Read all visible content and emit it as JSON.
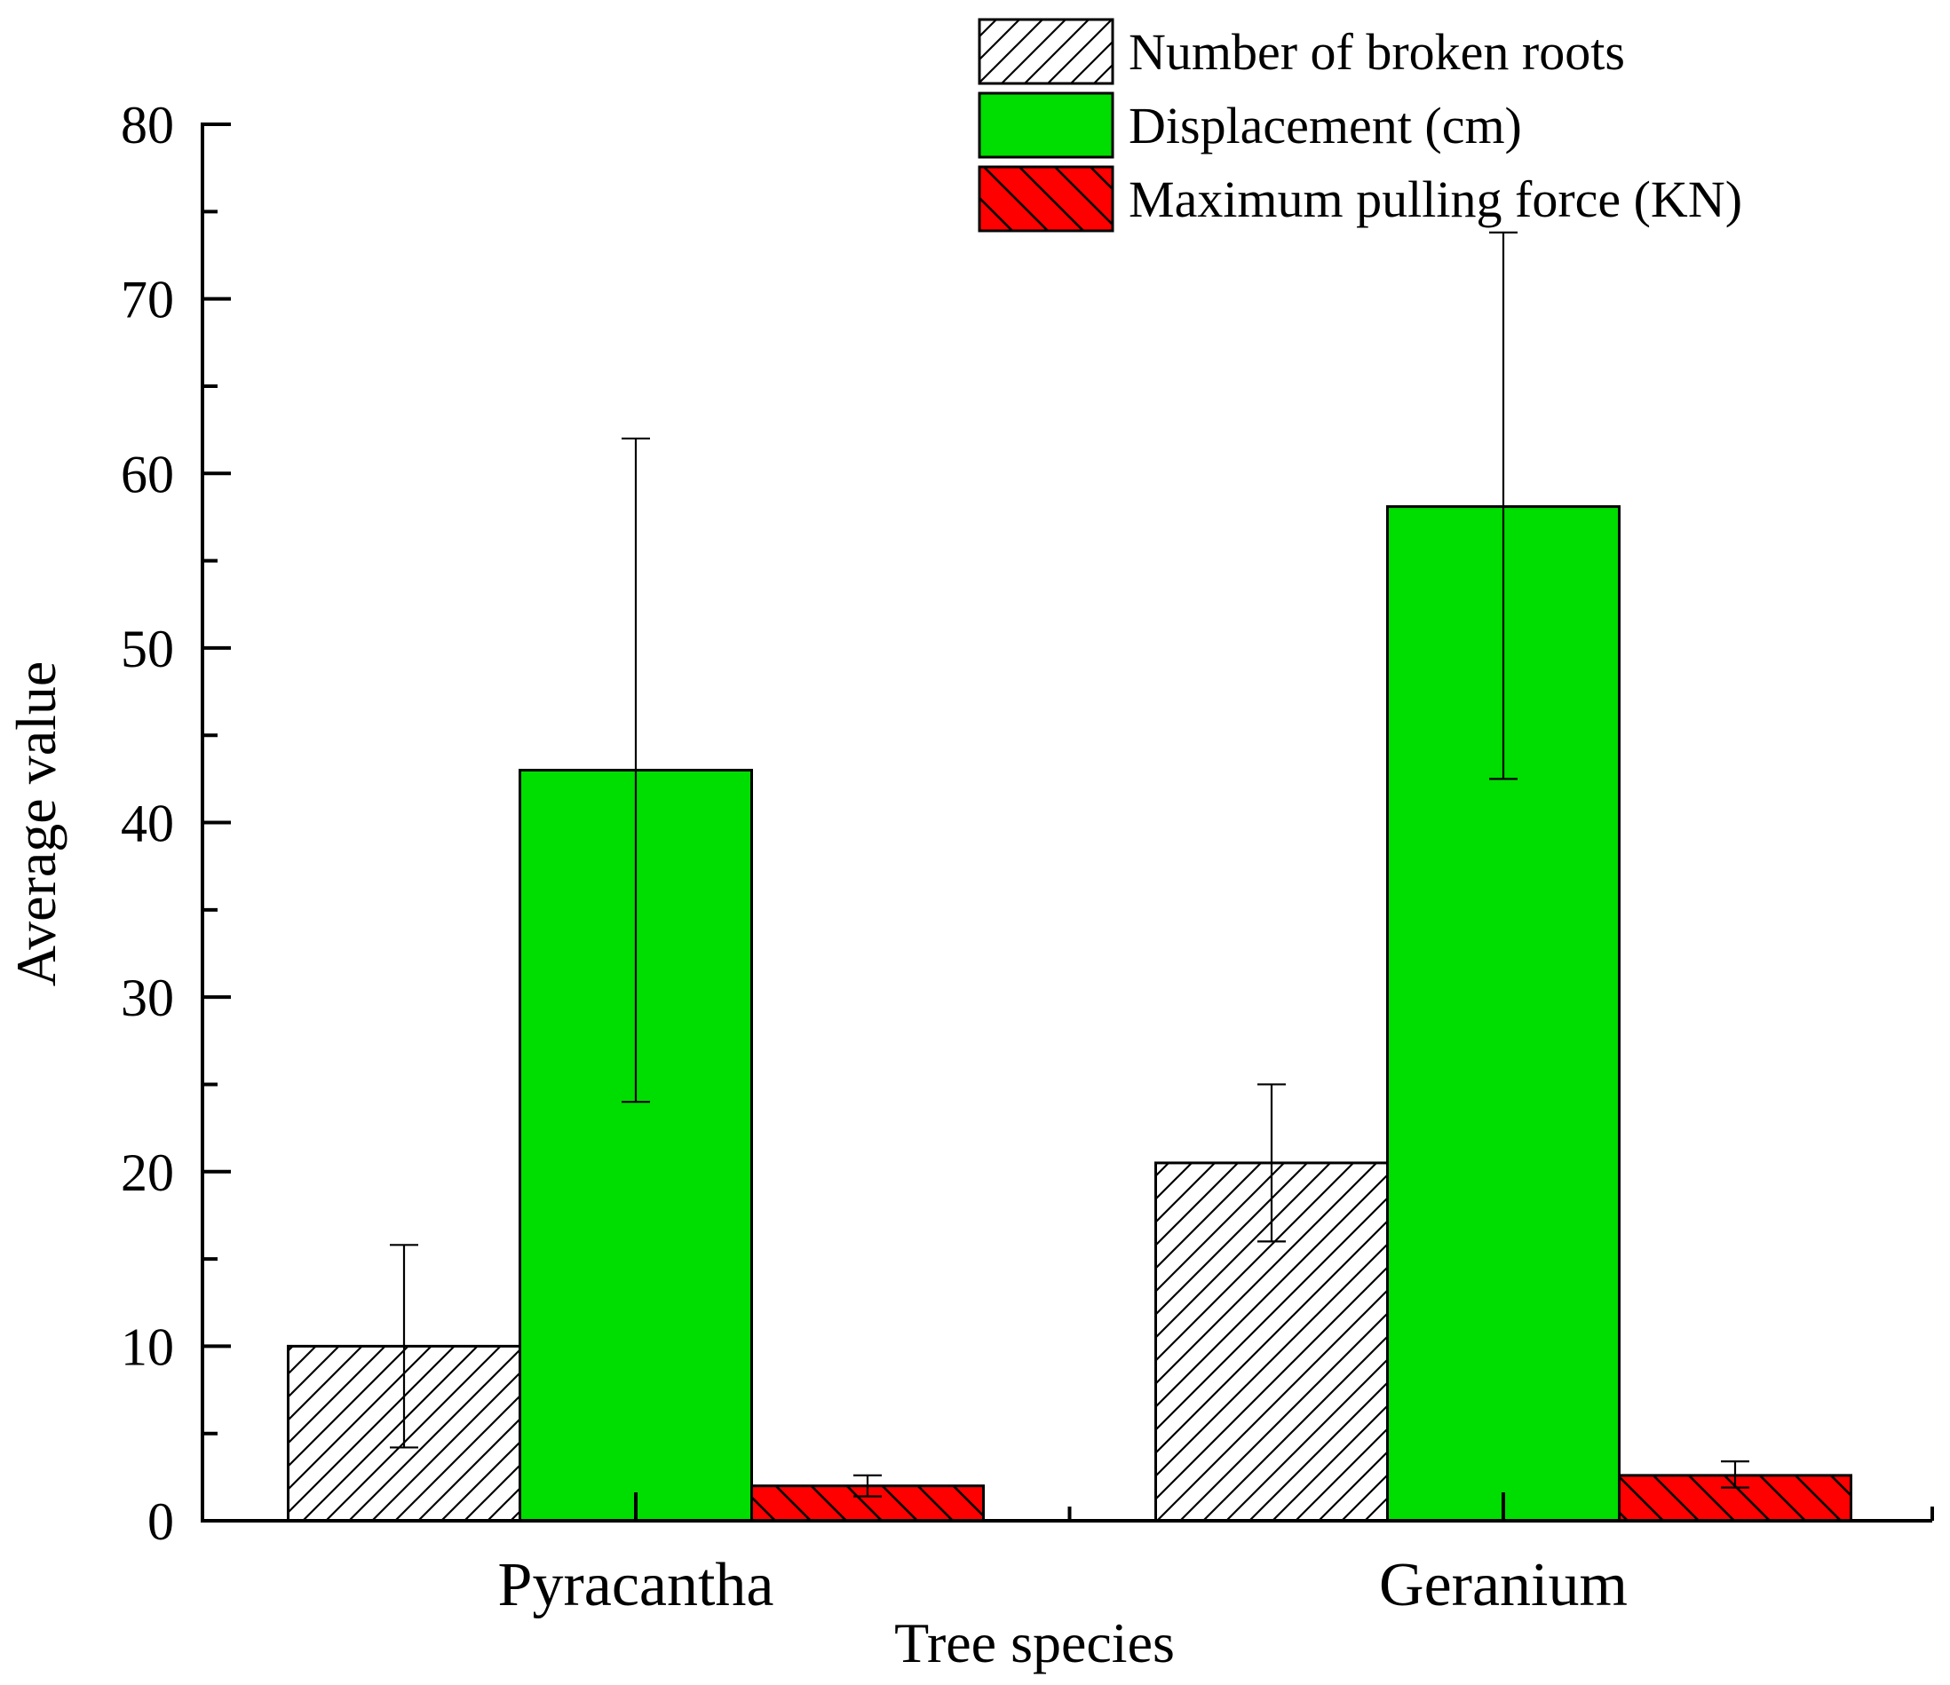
{
  "chart_data": {
    "type": "bar",
    "title": "",
    "xlabel": "Tree species",
    "ylabel": "Average value",
    "categories": [
      "Pyracantha",
      "Geranium"
    ],
    "ylim": [
      0,
      80
    ],
    "yticks": [
      0,
      10,
      20,
      30,
      40,
      50,
      60,
      70,
      80
    ],
    "yticks_labels": [
      "0",
      "10",
      "20",
      "30",
      "40",
      "50",
      "60",
      "70",
      "80"
    ],
    "grid": false,
    "legend_position": "top-right",
    "series": [
      {
        "name": "Number of broken roots",
        "values": [
          10.0,
          20.5
        ],
        "error_low": [
          4.2,
          16.0
        ],
        "error_high": [
          15.8,
          25.0
        ],
        "fill": "hatch-forward",
        "color": "#ffffff"
      },
      {
        "name": "Displacement (cm)",
        "values": [
          43.0,
          58.1
        ],
        "error_low": [
          24.0,
          42.5
        ],
        "error_high": [
          62.0,
          73.8
        ],
        "fill": "solid",
        "color": "#00dd00"
      },
      {
        "name": "Maximum pulling force (KN)",
        "values": [
          2.0,
          2.6
        ],
        "error_low": [
          1.4,
          1.9
        ],
        "error_high": [
          2.6,
          3.4
        ],
        "fill": "hatch-back",
        "color": "#ff0000"
      }
    ]
  }
}
